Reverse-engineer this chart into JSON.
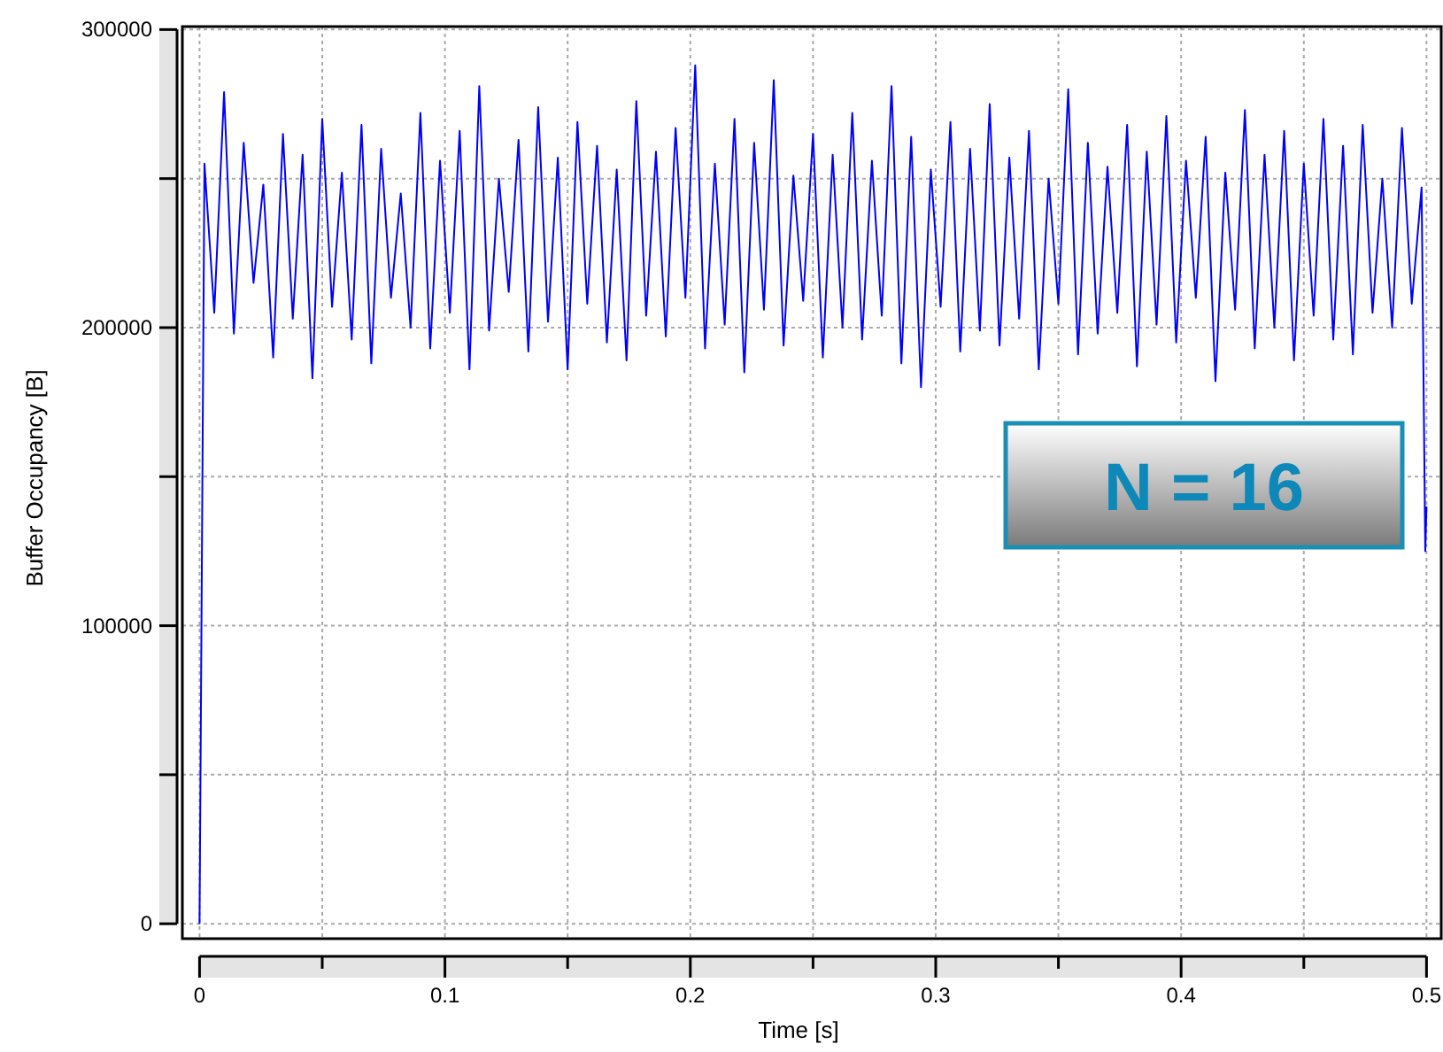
{
  "chart_data": {
    "type": "line",
    "xlabel": "Time [s]",
    "ylabel": "Buffer Occupancy [B]",
    "annotations": [
      "N = 16"
    ],
    "xlim": [
      -0.007,
      0.506
    ],
    "ylim": [
      -5000,
      301000
    ],
    "xticks": [
      0,
      {
        "value": 0.05,
        "label": null
      },
      0.1,
      {
        "value": 0.15,
        "label": null
      },
      0.2,
      {
        "value": 0.25,
        "label": null
      },
      0.3,
      {
        "value": 0.35,
        "label": null
      },
      0.4,
      {
        "value": 0.45,
        "label": null
      },
      0.5
    ],
    "yticks": [
      0,
      {
        "value": 50000,
        "label": null
      },
      100000,
      {
        "value": 150000,
        "label": null
      },
      200000,
      {
        "value": 250000,
        "label": null
      },
      300000
    ],
    "grid": true,
    "series": [
      {
        "color": "#0000ff",
        "x": [
          0,
          0.002,
          0.006,
          0.01,
          0.014,
          0.018,
          0.022,
          0.026,
          0.03,
          0.034,
          0.038,
          0.042,
          0.046,
          0.05,
          0.054,
          0.058,
          0.062,
          0.066,
          0.07,
          0.074,
          0.078,
          0.082,
          0.086,
          0.09,
          0.094,
          0.098,
          0.102,
          0.106,
          0.11,
          0.114,
          0.118,
          0.122,
          0.126,
          0.13,
          0.134,
          0.138,
          0.142,
          0.146,
          0.15,
          0.154,
          0.158,
          0.162,
          0.166,
          0.17,
          0.174,
          0.178,
          0.182,
          0.186,
          0.19,
          0.194,
          0.198,
          0.202,
          0.206,
          0.21,
          0.214,
          0.218,
          0.222,
          0.226,
          0.23,
          0.234,
          0.238,
          0.242,
          0.246,
          0.25,
          0.254,
          0.258,
          0.262,
          0.266,
          0.27,
          0.274,
          0.278,
          0.282,
          0.286,
          0.29,
          0.294,
          0.298,
          0.302,
          0.306,
          0.31,
          0.314,
          0.318,
          0.322,
          0.326,
          0.33,
          0.334,
          0.338,
          0.342,
          0.346,
          0.35,
          0.354,
          0.358,
          0.362,
          0.366,
          0.37,
          0.374,
          0.378,
          0.382,
          0.386,
          0.39,
          0.394,
          0.398,
          0.402,
          0.406,
          0.41,
          0.414,
          0.418,
          0.422,
          0.426,
          0.43,
          0.434,
          0.438,
          0.442,
          0.446,
          0.45,
          0.454,
          0.458,
          0.462,
          0.466,
          0.47,
          0.474,
          0.478,
          0.482,
          0.486,
          0.49,
          0.494,
          0.498,
          0.4995,
          0.5
        ],
        "values": [
          0,
          255000,
          205000,
          279000,
          198000,
          262000,
          215000,
          248000,
          190000,
          265000,
          203000,
          258000,
          183000,
          270000,
          207000,
          252000,
          196000,
          268000,
          188000,
          260000,
          210000,
          245000,
          200000,
          272000,
          193000,
          256000,
          205000,
          266000,
          186000,
          281000,
          199000,
          250000,
          212000,
          263000,
          192000,
          274000,
          202000,
          257000,
          186000,
          269000,
          208000,
          261000,
          195000,
          253000,
          189000,
          276000,
          204000,
          259000,
          197000,
          267000,
          210000,
          288000,
          193000,
          255000,
          201000,
          270000,
          185000,
          262000,
          206000,
          283000,
          194000,
          251000,
          209000,
          265000,
          190000,
          258000,
          200000,
          272000,
          196000,
          256000,
          204000,
          281000,
          188000,
          264000,
          180000,
          253000,
          207000,
          269000,
          192000,
          260000,
          199000,
          275000,
          194000,
          257000,
          203000,
          266000,
          186000,
          250000,
          208000,
          280000,
          191000,
          262000,
          198000,
          254000,
          205000,
          268000,
          187000,
          259000,
          201000,
          271000,
          195000,
          256000,
          210000,
          264000,
          182000,
          252000,
          206000,
          273000,
          193000,
          258000,
          200000,
          266000,
          189000,
          255000,
          204000,
          270000,
          196000,
          261000,
          191000,
          268000,
          205000,
          250000,
          200000,
          267000,
          208000,
          247000,
          125000,
          140000
        ]
      }
    ]
  }
}
